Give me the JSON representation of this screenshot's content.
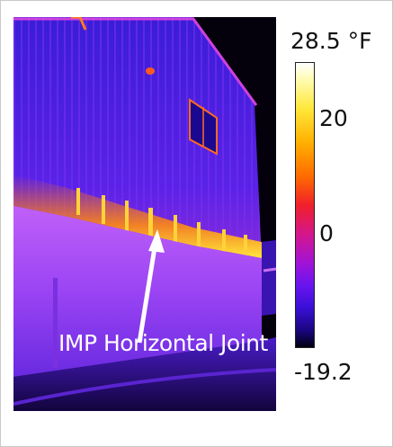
{
  "image": {
    "annotation": "IMP Horizontal Joint",
    "subject": "infrared thermal image of insulated metal panel building wall"
  },
  "colorbar": {
    "max_label": "28.5 °F",
    "min_label": "-19.2",
    "ticks": [
      "20",
      "0"
    ],
    "max_value": 28.5,
    "min_value": -19.2,
    "tick_values": [
      20,
      0
    ]
  },
  "colors": {
    "background": "#ffffff",
    "hot": "#ffe83a",
    "warm": "#ff6a00",
    "mid": "#d6168a",
    "cool": "#6a14f0",
    "cold": "#000010"
  }
}
